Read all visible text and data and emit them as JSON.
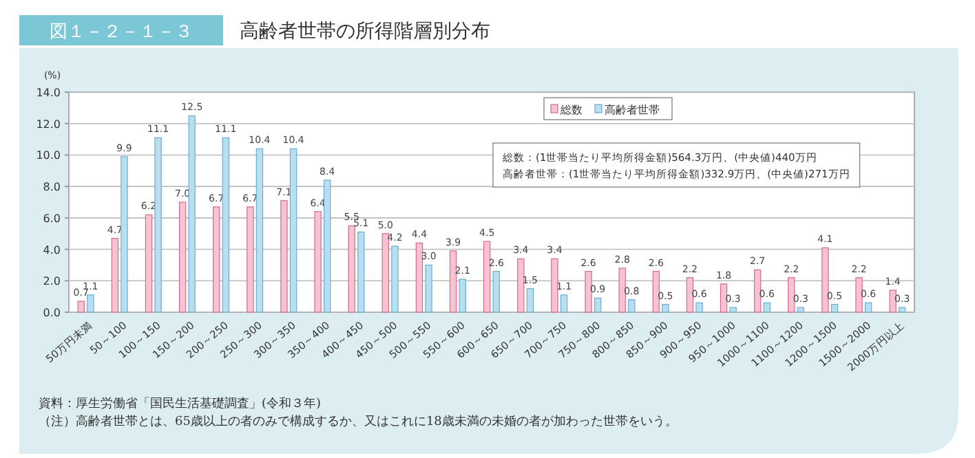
{
  "chart_data": {
    "type": "bar",
    "title": "高齢者世帯の所得階層別分布",
    "subtitle": "図１－２－１－３",
    "ylabel": "(%)",
    "categories": [
      "50万円未満",
      "50～100",
      "100～150",
      "150～200",
      "200～250",
      "250～300",
      "300～350",
      "350～400",
      "400～450",
      "450～500",
      "500～550",
      "550～600",
      "600～650",
      "650～700",
      "700～750",
      "750～800",
      "800～850",
      "850～900",
      "900～950",
      "950～1000",
      "1000～1100",
      "1100～1200",
      "1200～1500",
      "1500～2000",
      "2000万円以上"
    ],
    "series": [
      {
        "name": "総数",
        "color": "#f6c3d2",
        "values": [
          0.7,
          4.7,
          6.2,
          7.0,
          6.7,
          6.7,
          7.1,
          6.4,
          5.5,
          5.0,
          4.4,
          3.9,
          4.5,
          3.4,
          3.4,
          2.6,
          2.8,
          2.6,
          2.2,
          1.8,
          2.7,
          2.2,
          4.1,
          2.2,
          1.4
        ],
        "value_labels": [
          "0.7",
          "4.7",
          "6.2",
          "7.0",
          "6.7",
          "6.7",
          "7.1",
          "6.4",
          "5.5",
          "5.0",
          "4.4",
          "3.9",
          "4.5",
          "3.4",
          "3.4",
          "2.6",
          "2.8",
          "2.6",
          "2.2",
          "1.8",
          "2.7",
          "2.2",
          "4.1",
          "2.2",
          "1.4"
        ]
      },
      {
        "name": "高齢者世帯",
        "color": "#b8def0",
        "values": [
          1.1,
          9.9,
          11.1,
          12.5,
          11.1,
          10.4,
          10.4,
          8.4,
          5.1,
          4.2,
          3.0,
          2.1,
          2.6,
          1.5,
          1.1,
          0.9,
          0.8,
          0.5,
          0.6,
          0.3,
          0.6,
          0.3,
          0.5,
          0.6,
          0.3
        ],
        "value_labels": [
          "1.1",
          "9.9",
          "11.1",
          "12.5",
          "11.1",
          "10.4",
          "10.4",
          "8.4",
          "5.1",
          "4.2",
          "3.0",
          "2.1",
          "2.6",
          "1.5",
          "1.1",
          "0.9",
          "0.8",
          "0.5",
          "0.6",
          "0.3",
          "0.6",
          "0.3",
          "0.5",
          "0.6",
          "0.3"
        ]
      }
    ],
    "ylim": [
      0,
      14
    ],
    "yticks": [
      {
        "value": 0,
        "label": "0.0"
      },
      {
        "value": 2,
        "label": "2.0"
      },
      {
        "value": 4,
        "label": "4.0"
      },
      {
        "value": 6,
        "label": "6.0"
      },
      {
        "value": 8,
        "label": "8.0"
      },
      {
        "value": 10,
        "label": "10.0"
      },
      {
        "value": 12,
        "label": "12.0"
      },
      {
        "value": 14,
        "label": "14.0"
      }
    ],
    "grid": "y",
    "legend": "top right",
    "annotations": [
      "総数：(1世帯当たり平均所得金額)564.3万円、(中央値)440万円",
      "高齢者世帯：(1世帯当たり平均所得金額)332.9万円、(中央値)271万円",
      "資料：厚生労働省「国民生活基礎調査」(令和３年)",
      "（注）高齢者世帯とは、65歳以上の者のみで構成するか、又はこれに18歳未満の未婚の者が加わった世帯をいう。"
    ]
  }
}
